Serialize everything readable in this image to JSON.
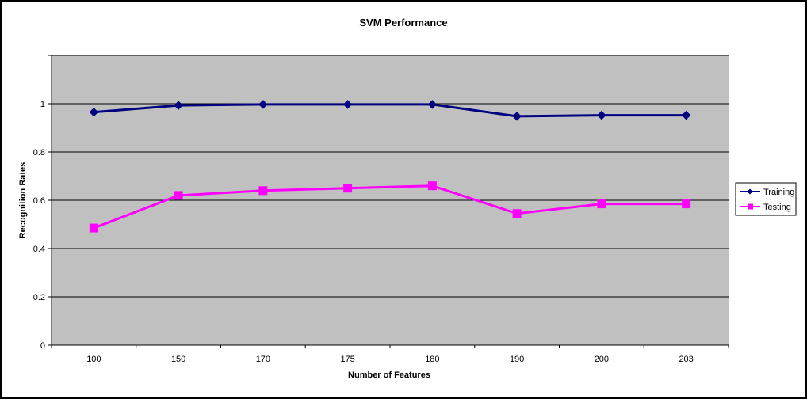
{
  "chart_data": {
    "type": "line",
    "title": "SVM Performance",
    "xlabel": "Number of Features",
    "ylabel": "Recognition Rates",
    "categories": [
      "100",
      "150",
      "170",
      "175",
      "180",
      "190",
      "200",
      "203"
    ],
    "ylim": [
      0,
      1.2
    ],
    "yticks": [
      "0",
      "0.2",
      "0.4",
      "0.6",
      "0.8",
      "1"
    ],
    "grid": true,
    "legend_position": "right",
    "plot_background": "#c0c0c0",
    "series": [
      {
        "name": "Training",
        "color": "#000080",
        "marker": "diamond",
        "values": [
          0.965,
          0.993,
          0.997,
          0.997,
          0.997,
          0.948,
          0.952,
          0.952
        ]
      },
      {
        "name": "Testing",
        "color": "#ff00ff",
        "marker": "square",
        "values": [
          0.485,
          0.62,
          0.64,
          0.65,
          0.66,
          0.545,
          0.585,
          0.585
        ]
      }
    ]
  }
}
